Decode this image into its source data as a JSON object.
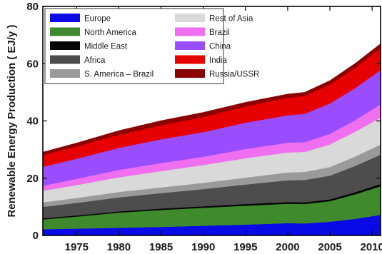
{
  "chart_data": {
    "type": "area",
    "stacked": true,
    "title": "",
    "xlabel": "",
    "ylabel": "Renewable Energy Production ( EJ/y )",
    "xlim": [
      1971,
      2011
    ],
    "ylim": [
      0,
      80
    ],
    "xticks": [
      1975,
      1980,
      1985,
      1990,
      1995,
      2000,
      2005,
      2010
    ],
    "yticks": [
      0,
      20,
      40,
      60,
      80
    ],
    "x": [
      1971,
      1975,
      1980,
      1985,
      1990,
      1995,
      2000,
      2002,
      2005,
      2008,
      2011
    ],
    "series": [
      {
        "name": "Europe",
        "color": "#0a0ae6",
        "values": [
          2.2,
          2.4,
          2.7,
          3.0,
          3.4,
          3.8,
          4.3,
          4.2,
          4.8,
          5.8,
          7.2
        ]
      },
      {
        "name": "North America",
        "color": "#3f8a2c",
        "values": [
          3.4,
          4.2,
          5.3,
          5.9,
          6.3,
          6.6,
          6.8,
          6.8,
          7.2,
          8.6,
          10.0
        ]
      },
      {
        "name": "Middle East",
        "color": "#050505",
        "values": [
          0.4,
          0.4,
          0.4,
          0.5,
          0.5,
          0.6,
          0.6,
          0.6,
          0.6,
          0.7,
          0.8
        ]
      },
      {
        "name": "Africa",
        "color": "#4d4d4d",
        "values": [
          4.0,
          4.4,
          4.9,
          5.4,
          6.0,
          6.8,
          7.6,
          7.8,
          8.3,
          9.2,
          10.2
        ]
      },
      {
        "name": "S. America – Brazil",
        "color": "#9a9a9a",
        "values": [
          1.6,
          1.7,
          1.9,
          2.0,
          2.2,
          2.4,
          2.7,
          2.8,
          3.0,
          3.3,
          3.6
        ]
      },
      {
        "name": "Rest of Asia",
        "color": "#d9d9d9",
        "values": [
          4.0,
          4.5,
          5.1,
          5.7,
          6.2,
          6.8,
          7.0,
          7.0,
          7.9,
          8.6,
          9.4
        ]
      },
      {
        "name": "Brazil",
        "color": "#ef6ff0",
        "values": [
          1.8,
          2.2,
          2.6,
          2.8,
          2.9,
          3.2,
          3.4,
          3.4,
          3.7,
          4.1,
          4.6
        ]
      },
      {
        "name": "China",
        "color": "#9a4dff",
        "values": [
          6.6,
          7.0,
          7.7,
          8.3,
          8.6,
          9.2,
          9.6,
          9.9,
          10.6,
          11.2,
          12.0
        ]
      },
      {
        "name": "India",
        "color": "#e60000",
        "values": [
          4.1,
          4.3,
          4.6,
          4.9,
          5.3,
          5.7,
          6.1,
          6.2,
          6.6,
          7.1,
          7.6
        ]
      },
      {
        "name": "Russia/USSR",
        "color": "#8b0000",
        "values": [
          1.0,
          1.2,
          1.4,
          1.6,
          1.6,
          1.4,
          1.3,
          1.3,
          1.4,
          1.5,
          1.6
        ]
      }
    ],
    "legend": {
      "placement": "top-left",
      "columns": 2
    },
    "grid": false
  }
}
